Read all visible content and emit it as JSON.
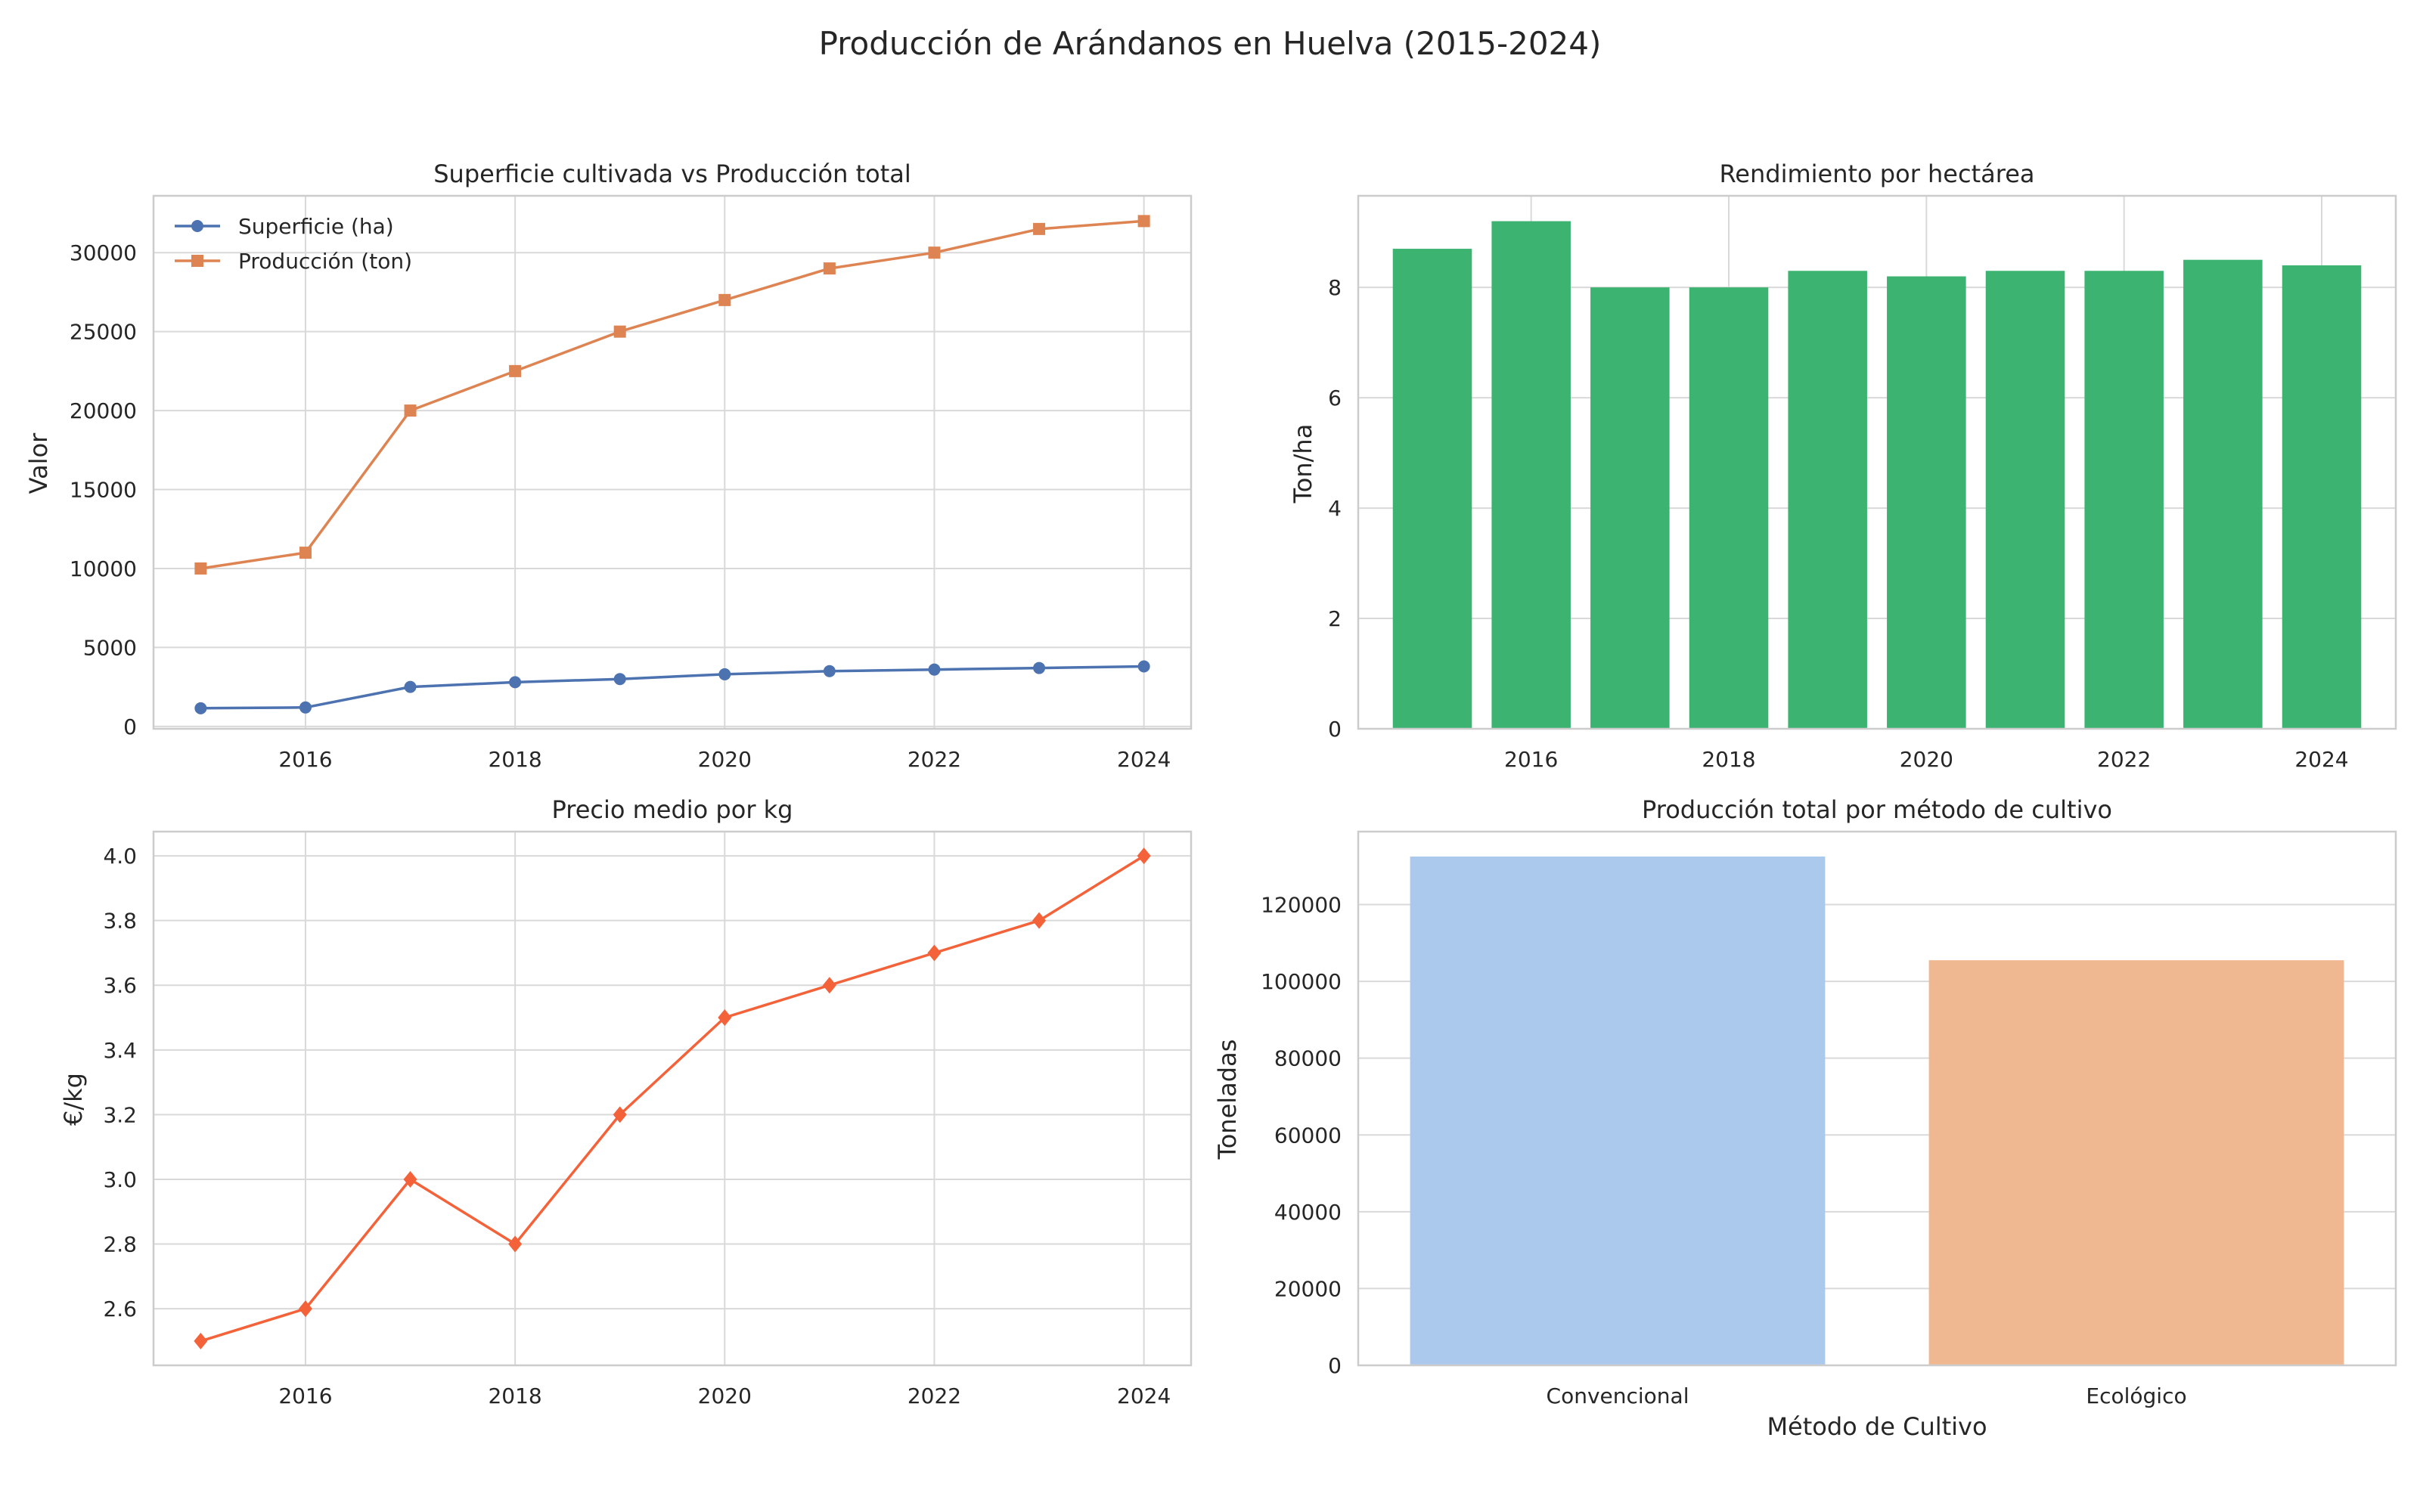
{
  "figure": {
    "title": "Producción de Arándanos en Huelva (2015-2024)"
  },
  "chart_data": [
    {
      "id": "superficie-produccion",
      "type": "line",
      "title": "Superficie cultivada vs Producción total",
      "xlabel": "",
      "ylabel": "Valor",
      "x": [
        2015,
        2016,
        2017,
        2018,
        2019,
        2020,
        2021,
        2022,
        2023,
        2024
      ],
      "xlim": [
        2014.55,
        2024.45
      ],
      "ylim": [
        -150,
        33600
      ],
      "xticks": [
        2016,
        2018,
        2020,
        2022,
        2024
      ],
      "yticks": [
        0,
        5000,
        10000,
        15000,
        20000,
        25000,
        30000
      ],
      "grid": true,
      "legend": "top-left",
      "series": [
        {
          "name": "Superficie (ha)",
          "color": "#4c72b0",
          "marker": "circle",
          "values": [
            1150,
            1200,
            2500,
            2800,
            3000,
            3300,
            3500,
            3600,
            3700,
            3800
          ]
        },
        {
          "name": "Producción (ton)",
          "color": "#dd8452",
          "marker": "square",
          "values": [
            10000,
            11000,
            20000,
            22500,
            25000,
            27000,
            29000,
            30000,
            31500,
            32000
          ]
        }
      ]
    },
    {
      "id": "rendimiento",
      "type": "bar",
      "title": "Rendimiento por hectárea",
      "xlabel": "",
      "ylabel": "Ton/ha",
      "x": [
        2015,
        2016,
        2017,
        2018,
        2019,
        2020,
        2021,
        2022,
        2023,
        2024
      ],
      "values": [
        8.7,
        9.2,
        8.0,
        8.0,
        8.3,
        8.2,
        8.3,
        8.3,
        8.5,
        8.4
      ],
      "color": "#3cb371",
      "xlim": [
        2014.25,
        2024.75
      ],
      "ylim": [
        0,
        9.66
      ],
      "xticks": [
        2016,
        2018,
        2020,
        2022,
        2024
      ],
      "yticks": [
        0,
        2,
        4,
        6,
        8
      ],
      "grid": true
    },
    {
      "id": "precio",
      "type": "line",
      "title": "Precio medio por kg",
      "xlabel": "",
      "ylabel": "€/kg",
      "x": [
        2015,
        2016,
        2017,
        2018,
        2019,
        2020,
        2021,
        2022,
        2023,
        2024
      ],
      "xlim": [
        2014.55,
        2024.45
      ],
      "ylim": [
        2.425,
        4.075
      ],
      "xticks": [
        2016,
        2018,
        2020,
        2022,
        2024
      ],
      "yticks": [
        2.6,
        2.8,
        3.0,
        3.2,
        3.4,
        3.6,
        3.8,
        4.0
      ],
      "ytick_labels": [
        "2.6",
        "2.8",
        "3.0",
        "3.2",
        "3.4",
        "3.6",
        "3.8",
        "4.0"
      ],
      "grid": true,
      "series": [
        {
          "name": "",
          "color": "#f4623a",
          "marker": "diamond",
          "values": [
            2.5,
            2.6,
            3.0,
            2.8,
            3.2,
            3.5,
            3.6,
            3.7,
            3.8,
            4.0
          ]
        }
      ]
    },
    {
      "id": "metodo",
      "type": "bar",
      "title": "Producción total por método de cultivo",
      "xlabel": "Método de Cultivo",
      "ylabel": "Toneladas",
      "categories": [
        "Convencional",
        "Ecológico"
      ],
      "values": [
        132500,
        105500
      ],
      "colors": [
        "#abc9ed",
        "#f0b891"
      ],
      "ylim": [
        0,
        139000
      ],
      "yticks": [
        0,
        20000,
        40000,
        60000,
        80000,
        100000,
        120000
      ],
      "grid": true
    }
  ]
}
